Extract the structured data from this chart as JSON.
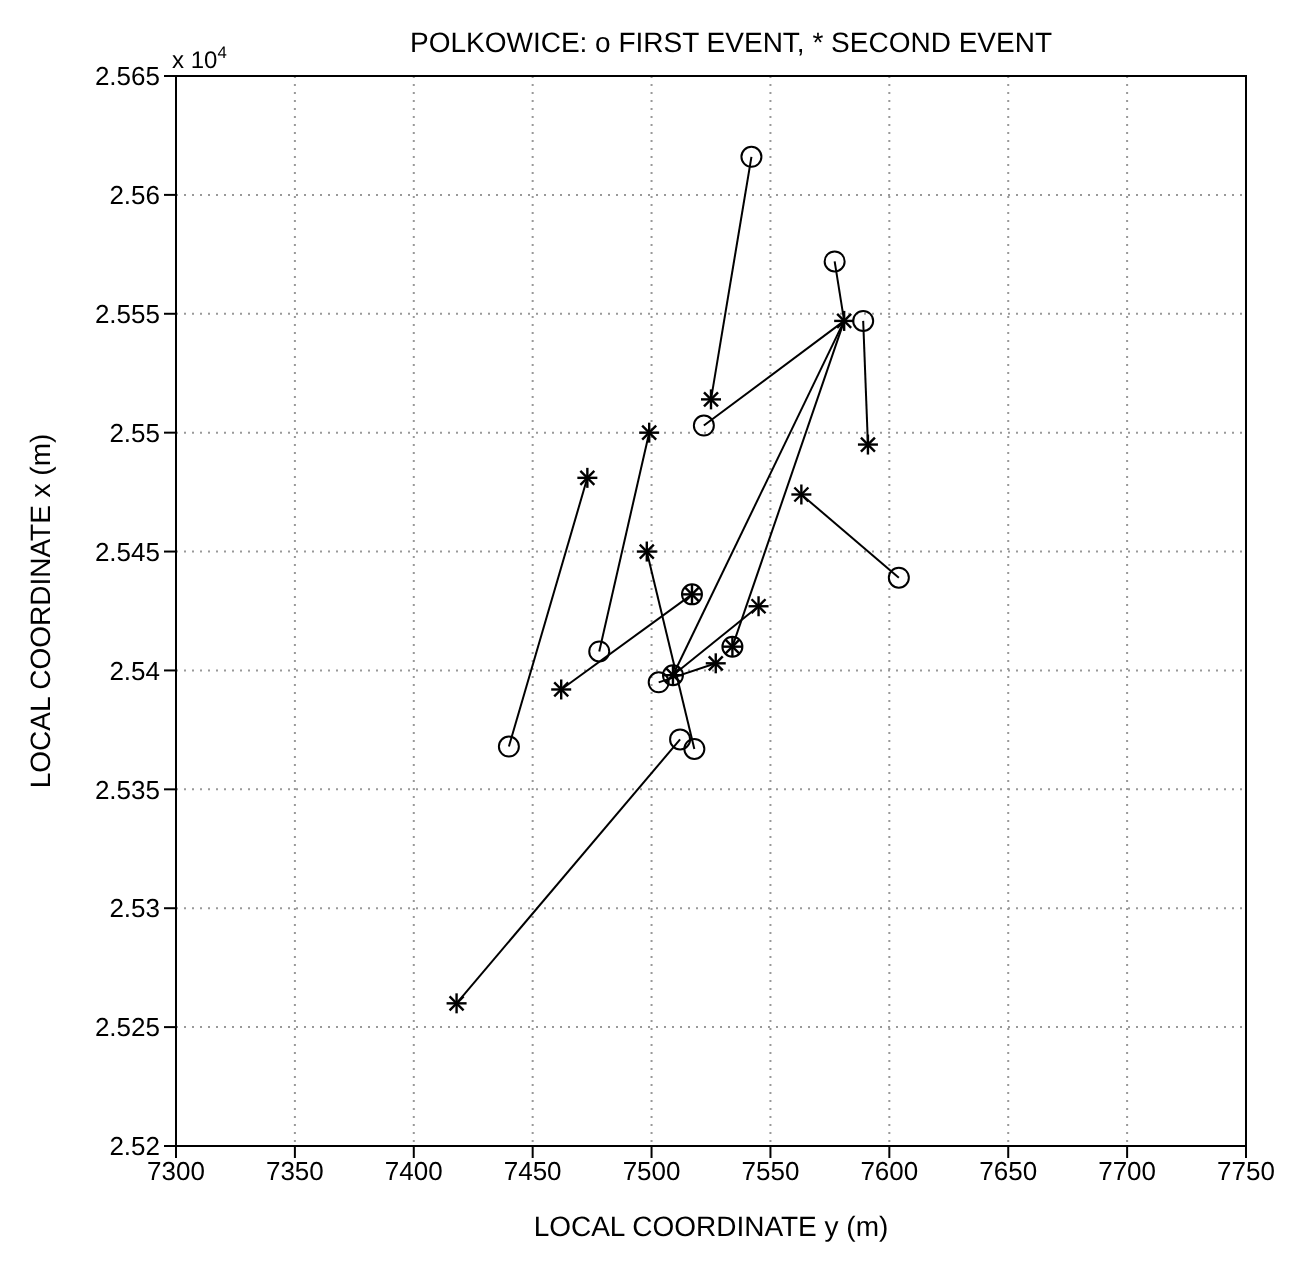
{
  "chart_data": {
    "type": "scatter",
    "title": "POLKOWICE: o FIRST EVENT, * SECOND EVENT",
    "xlabel": "LOCAL COORDINATE y (m)",
    "ylabel": "LOCAL COORDINATE x (m)",
    "annotations": [
      "x 10$^{4}$"
    ],
    "xlim": [
      7300,
      7750
    ],
    "xticks": [
      7300,
      7350,
      7400,
      7450,
      7500,
      7550,
      7600,
      7650,
      7700,
      7750
    ],
    "ylim": [
      2.52,
      2.565
    ],
    "yticks": [
      2.52,
      2.525,
      2.53,
      2.535,
      2.54,
      2.545,
      2.55,
      2.555,
      2.56,
      2.565
    ],
    "grid": true,
    "series": [
      {
        "type": "line",
        "color": "#000000",
        "x": [
          7542,
          7525
        ],
        "values": [
          2.5616,
          2.5514
        ]
      },
      {
        "type": "line",
        "color": "#000000",
        "x": [
          7577,
          7581
        ],
        "values": [
          2.5572,
          2.5547
        ]
      },
      {
        "type": "line",
        "color": "#000000",
        "x": [
          7589,
          7591
        ],
        "values": [
          2.5547,
          2.5495
        ]
      },
      {
        "type": "line",
        "color": "#000000",
        "x": [
          7604,
          7563
        ],
        "values": [
          2.5439,
          2.5474
        ]
      },
      {
        "type": "line",
        "color": "#000000",
        "x": [
          7440,
          7473
        ],
        "values": [
          2.5368,
          2.5481
        ]
      },
      {
        "type": "line",
        "color": "#000000",
        "x": [
          7518,
          7498
        ],
        "values": [
          2.5367,
          2.545
        ]
      },
      {
        "type": "line",
        "color": "#000000",
        "x": [
          7478,
          7499
        ],
        "values": [
          2.5408,
          2.55
        ]
      },
      {
        "type": "line",
        "color": "#000000",
        "x": [
          7512,
          7418
        ],
        "values": [
          2.5371,
          2.526
        ]
      },
      {
        "type": "line",
        "color": "#000000",
        "x": [
          7522,
          7581
        ],
        "values": [
          2.5503,
          2.5547
        ]
      },
      {
        "type": "line",
        "marker": "cross",
        "color": "#000000",
        "x": [
          7517,
          7462
        ],
        "values": [
          2.5432,
          2.5392
        ]
      },
      {
        "type": "line",
        "color": "#000000",
        "x": [
          7503,
          7527
        ],
        "values": [
          2.5395,
          2.5403
        ]
      },
      {
        "type": "line",
        "marker": "cross",
        "color": "#000000",
        "x": [
          7509,
          7545
        ],
        "values": [
          2.5398,
          2.5427
        ]
      },
      {
        "type": "line",
        "color": "#000000",
        "x": [
          7534,
          7581
        ],
        "values": [
          2.541,
          2.5547
        ]
      },
      {
        "type": "line",
        "color": "#000000",
        "x": [
          7509,
          7581
        ],
        "values": [
          2.5398,
          2.5547
        ]
      },
      {
        "type": "scatter",
        "marker": "circle",
        "color": "#000000",
        "x": [
          7542,
          7577,
          7589,
          7604,
          7440,
          7518,
          7478,
          7512,
          7522,
          7517,
          7503,
          7509,
          7534
        ],
        "values": [
          2.5616,
          2.5572,
          2.5547,
          2.5439,
          2.5368,
          2.5367,
          2.5408,
          2.5371,
          2.5503,
          2.5432,
          2.5395,
          2.5398,
          2.541
        ]
      },
      {
        "type": "scatter",
        "marker": "cross",
        "color": "#000000",
        "x": [
          7525,
          7581,
          7591,
          7563,
          7473,
          7498,
          7499,
          7418,
          7527,
          7534
        ],
        "values": [
          2.5514,
          2.5547,
          2.5495,
          2.5474,
          2.5481,
          2.545,
          2.55,
          2.526,
          2.5403,
          2.541
        ]
      }
    ]
  }
}
